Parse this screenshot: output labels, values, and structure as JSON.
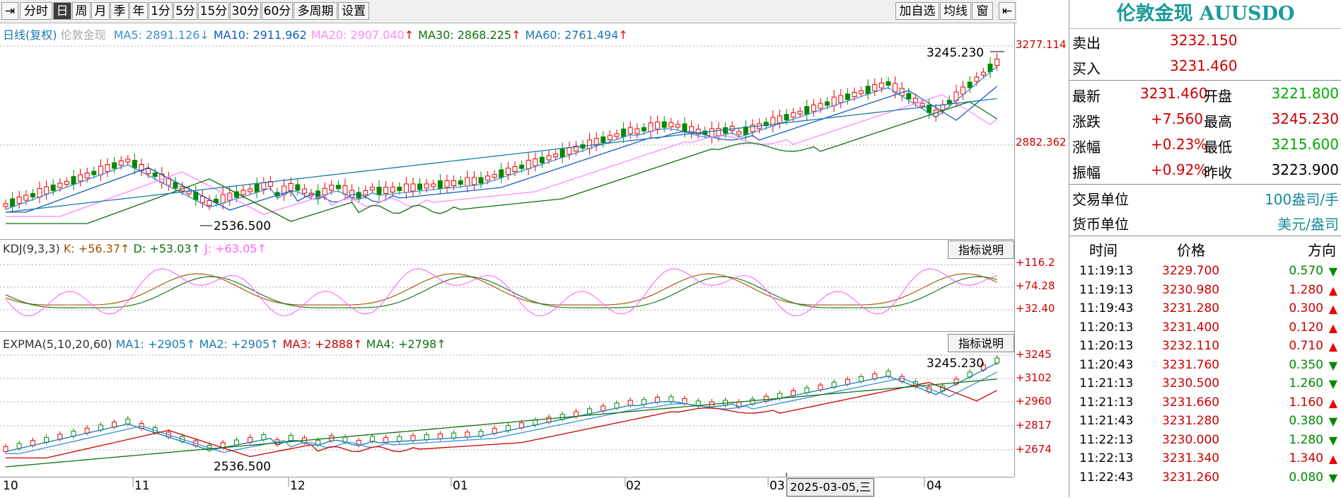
{
  "toolbar": {
    "left_items": [
      "分时",
      "日",
      "周",
      "月",
      "季",
      "年",
      "1分",
      "5分",
      "15分",
      "30分",
      "60分",
      "多周期",
      "设置"
    ],
    "active": "日",
    "right_items": [
      "加自选",
      "均线",
      "窗"
    ]
  },
  "main_chart": {
    "header_name": "日线(复权)",
    "header_symbol": "伦敦金现",
    "ma": [
      {
        "label": "MA5: 2891.126",
        "color": "#3a8fd8",
        "dir": "↓"
      },
      {
        "label": "MA10: 2911.962",
        "color": "#1060c0",
        "dir": ""
      },
      {
        "label": "MA20: 2907.040",
        "color": "#ff88ff",
        "dir": "↑"
      },
      {
        "label": "MA30: 2868.225",
        "color": "#107010",
        "dir": "↑"
      },
      {
        "label": "MA60: 2761.494",
        "color": "#1a7ab0",
        "dir": "↑"
      }
    ],
    "axis_labels": [
      "3277.114",
      "2882.362"
    ],
    "high_label": "3245.230",
    "low_label": "2536.500"
  },
  "kdj": {
    "header": "KDJ(9,3,3)",
    "k": "K: +56.37↑",
    "d": "D: +53.03↑",
    "j": "J: +63.05↑",
    "explain": "指标说明",
    "axis_labels": [
      "+116.2",
      "+74.28",
      "+32.40"
    ]
  },
  "expma": {
    "header": "EXPMA(5,10,20,60)",
    "ma1": "MA1: +2905↑",
    "ma2": "MA2: +2905↑",
    "ma3": "MA3: +2888↑",
    "ma4": "MA4: +2798↑",
    "explain": "指标说明",
    "axis_labels": [
      "+3245",
      "+3102",
      "+2960",
      "+2817",
      "+2674"
    ],
    "high_label": "3245.230",
    "low_label": "2536.500"
  },
  "x_axis": {
    "labels": [
      "10",
      "11",
      "12",
      "01",
      "02",
      "03",
      "04"
    ],
    "cursor_date": "2025-03-05,三"
  },
  "quote": {
    "title": "伦敦金现 AUUSDO",
    "sell_label": "卖出",
    "sell": "3232.150",
    "buy_label": "买入",
    "buy": "3231.460",
    "latest_label": "最新",
    "latest": "3231.460",
    "open_label": "开盘",
    "open": "3221.800",
    "change_label": "涨跌",
    "change": "+7.560",
    "high_label": "最高",
    "high": "3245.230",
    "pct_label": "涨幅",
    "pct": "+0.23%",
    "low_label": "最低",
    "low": "3215.600",
    "amp_label": "振幅",
    "amp": "+0.92%",
    "prev_label": "昨收",
    "prev": "3223.900",
    "unit_label": "交易单位",
    "unit": "100盎司/手",
    "currency_label": "货币单位",
    "currency": "美元/盎司",
    "ticks_header": [
      "时间",
      "价格",
      "方向"
    ],
    "ticks": [
      {
        "time": "11:19:13",
        "price": "3229.700",
        "vol": "0.570",
        "dir": "down"
      },
      {
        "time": "11:19:13",
        "price": "3230.980",
        "vol": "1.280",
        "dir": "up"
      },
      {
        "time": "11:19:43",
        "price": "3231.280",
        "vol": "0.300",
        "dir": "up"
      },
      {
        "time": "11:20:13",
        "price": "3231.400",
        "vol": "0.120",
        "dir": "up"
      },
      {
        "time": "11:20:13",
        "price": "3232.110",
        "vol": "0.710",
        "dir": "up"
      },
      {
        "time": "11:20:43",
        "price": "3231.760",
        "vol": "0.350",
        "dir": "down"
      },
      {
        "time": "11:21:13",
        "price": "3230.500",
        "vol": "1.260",
        "dir": "down"
      },
      {
        "time": "11:21:13",
        "price": "3231.660",
        "vol": "1.160",
        "dir": "up"
      },
      {
        "time": "11:21:43",
        "price": "3231.280",
        "vol": "0.380",
        "dir": "down"
      },
      {
        "time": "11:22:13",
        "price": "3230.000",
        "vol": "1.280",
        "dir": "down"
      },
      {
        "time": "11:22:13",
        "price": "3231.340",
        "vol": "1.340",
        "dir": "up"
      },
      {
        "time": "11:22:43",
        "price": "3231.260",
        "vol": "0.080",
        "dir": "down"
      }
    ]
  },
  "colors": {
    "up": "#e00000",
    "down": "#008800",
    "accent": "#1a9a9a"
  }
}
